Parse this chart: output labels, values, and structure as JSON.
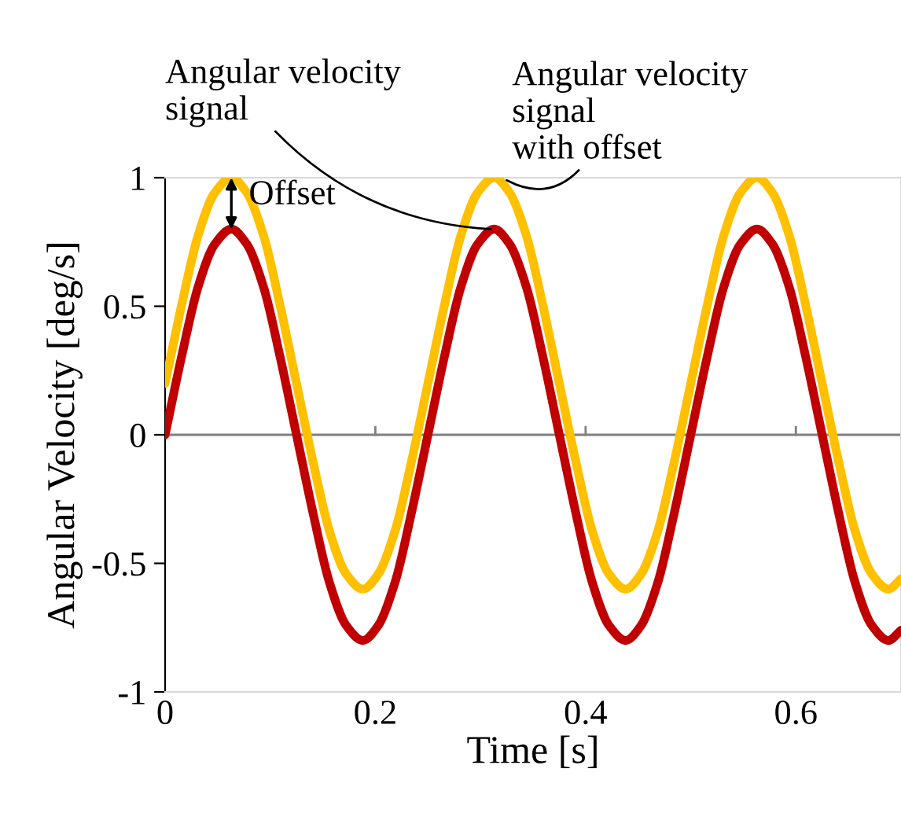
{
  "chart_data": {
    "type": "line",
    "xlabel": "Time [s]",
    "ylabel": "Angular Velocity [deg/s]",
    "xlim": [
      0,
      0.7
    ],
    "ylim": [
      -1,
      1
    ],
    "xticks": [
      0,
      0.2,
      0.4,
      0.6
    ],
    "yticks": [
      -1,
      -0.5,
      0,
      0.5,
      1
    ],
    "x": [
      0,
      0.016,
      0.031,
      0.047,
      0.063,
      0.078,
      0.094,
      0.109,
      0.125,
      0.141,
      0.156,
      0.172,
      0.188,
      0.203,
      0.219,
      0.234,
      0.25,
      0.266,
      0.281,
      0.297,
      0.313,
      0.328,
      0.344,
      0.359,
      0.375,
      0.391,
      0.406,
      0.422,
      0.438,
      0.453,
      0.469,
      0.484,
      0.5,
      0.516,
      0.531,
      0.547,
      0.563,
      0.578,
      0.594,
      0.609,
      0.625,
      0.641,
      0.656,
      0.672,
      0.688,
      0.7
    ],
    "series": [
      {
        "color": "#ffc000",
        "values": [
          0.2,
          0.51,
          0.77,
          0.94,
          1,
          0.94,
          0.77,
          0.51,
          0.2,
          -0.11,
          -0.37,
          -0.54,
          -0.6,
          -0.54,
          -0.37,
          -0.11,
          0.2,
          0.51,
          0.77,
          0.94,
          1,
          0.94,
          0.77,
          0.51,
          0.2,
          -0.11,
          -0.37,
          -0.54,
          -0.6,
          -0.54,
          -0.37,
          -0.11,
          0.2,
          0.51,
          0.77,
          0.94,
          1,
          0.94,
          0.77,
          0.51,
          0.2,
          -0.11,
          -0.37,
          -0.54,
          -0.6,
          -0.56
        ]
      },
      {
        "color": "#c00000",
        "values": [
          0,
          0.31,
          0.57,
          0.74,
          0.8,
          0.74,
          0.57,
          0.31,
          0,
          -0.31,
          -0.57,
          -0.74,
          -0.8,
          -0.74,
          -0.57,
          -0.31,
          0,
          0.31,
          0.57,
          0.74,
          0.8,
          0.74,
          0.57,
          0.31,
          0,
          -0.31,
          -0.57,
          -0.74,
          -0.8,
          -0.74,
          -0.57,
          -0.31,
          0,
          0.31,
          0.57,
          0.74,
          0.8,
          0.74,
          0.57,
          0.31,
          0,
          -0.31,
          -0.57,
          -0.74,
          -0.8,
          -0.76
        ]
      }
    ],
    "ref_lines": [
      {
        "axis": "y",
        "value": 0,
        "color": "#808080"
      }
    ],
    "annotations": [
      {
        "text": "Angular velocity\nsignal",
        "x": 0.31,
        "y": 0.8
      },
      {
        "text": "Angular velocity\nsignal\nwith offset",
        "x": 0.325,
        "y": 0.99
      },
      "Offset"
    ],
    "grid": false,
    "legend": false,
    "marker": "none",
    "line_style": "solid"
  }
}
